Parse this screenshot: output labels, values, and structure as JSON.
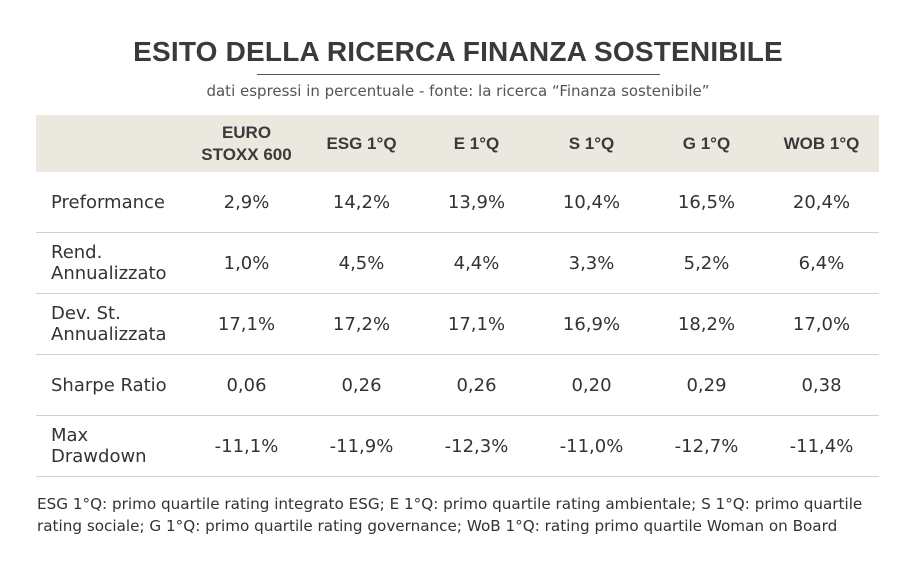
{
  "chart_data": {
    "type": "table",
    "title": "ESITO DELLA RICERCA FINANZA SOSTENIBILE",
    "subtitle": "dati espressi in percentuale - fonte: la ricerca “Finanza sostenibile”",
    "columns": [
      "",
      "EURO STOXX 600",
      "ESG 1°Q",
      "E 1°Q",
      "S 1°Q",
      "G 1°Q",
      "WOB 1°Q"
    ],
    "column_lines": [
      [
        ""
      ],
      [
        "EURO",
        "STOXX 600"
      ],
      [
        "ESG 1°Q"
      ],
      [
        "E 1°Q"
      ],
      [
        "S 1°Q"
      ],
      [
        "G 1°Q"
      ],
      [
        "WOB 1°Q"
      ]
    ],
    "rows": [
      {
        "label_lines": [
          "Preformance"
        ],
        "values": [
          "2,9%",
          "14,2%",
          "13,9%",
          "10,4%",
          "16,5%",
          "20,4%"
        ]
      },
      {
        "label_lines": [
          "Rend.",
          "Annualizzato"
        ],
        "values": [
          "1,0%",
          "4,5%",
          "4,4%",
          "3,3%",
          "5,2%",
          "6,4%"
        ]
      },
      {
        "label_lines": [
          "Dev. St.",
          "Annualizzata"
        ],
        "values": [
          "17,1%",
          "17,2%",
          "17,1%",
          "16,9%",
          "18,2%",
          "17,0%"
        ]
      },
      {
        "label_lines": [
          "Sharpe Ratio"
        ],
        "values": [
          "0,06",
          "0,26",
          "0,26",
          "0,20",
          "0,29",
          "0,38"
        ]
      },
      {
        "label_lines": [
          "Max",
          "Drawdown"
        ],
        "values": [
          "-11,1%",
          "-11,9%",
          "-12,3%",
          "-11,0%",
          "-12,7%",
          "-11,4%"
        ]
      }
    ],
    "footnote": "ESG 1°Q: primo quartile rating integrato ESG; E 1°Q: primo quartile rating ambientale; S 1°Q: primo quartile rating sociale; G 1°Q: primo quartile rating governance; WoB 1°Q: rating primo quartile Woman on Board"
  },
  "colors": {
    "header_background": "#ebe8e0",
    "row_divider": "#cfcfcf",
    "title_text": "#3a3a3a",
    "body_text": "#333333"
  }
}
